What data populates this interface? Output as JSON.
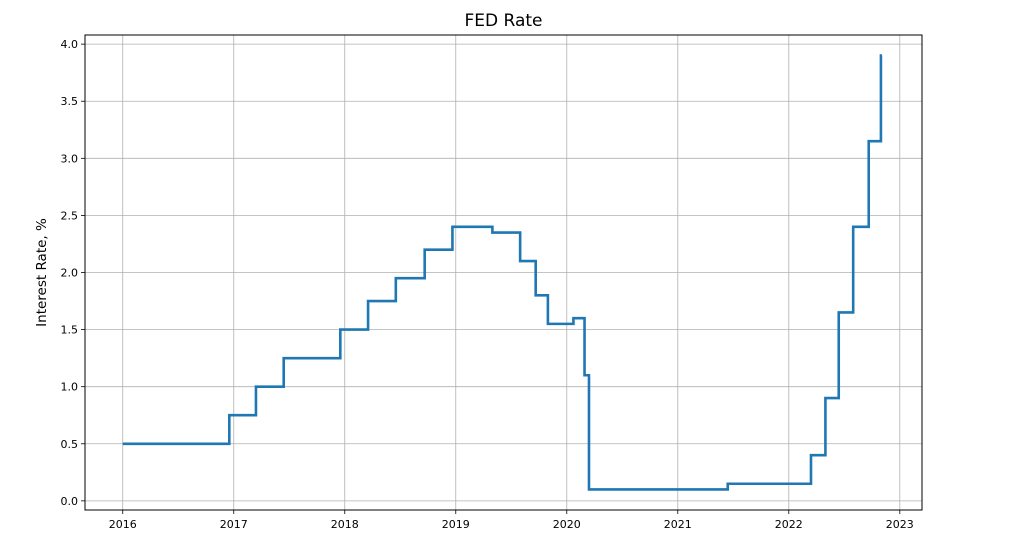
{
  "chart_data": {
    "type": "line",
    "title": "FED Rate",
    "xlabel": "",
    "ylabel": "Interest Rate, %",
    "xlim": [
      2015.66,
      2023.2
    ],
    "ylim": [
      -0.08,
      4.08
    ],
    "x_ticks": [
      2016,
      2017,
      2018,
      2019,
      2020,
      2021,
      2022,
      2023
    ],
    "x_tick_labels": [
      "2016",
      "2017",
      "2018",
      "2019",
      "2020",
      "2021",
      "2022",
      "2023"
    ],
    "y_ticks": [
      0.0,
      0.5,
      1.0,
      1.5,
      2.0,
      2.5,
      3.0,
      3.5,
      4.0
    ],
    "y_tick_labels": [
      "0.0",
      "0.5",
      "1.0",
      "1.5",
      "2.0",
      "2.5",
      "3.0",
      "3.5",
      "4.0"
    ],
    "grid": true,
    "step": true,
    "series": [
      {
        "color": "#1f77b4",
        "x": [
          2016.0,
          2016.96,
          2017.2,
          2017.45,
          2017.96,
          2018.21,
          2018.46,
          2018.72,
          2018.97,
          2019.33,
          2019.58,
          2019.72,
          2019.83,
          2020.06,
          2020.16,
          2020.2,
          2021.45,
          2022.2,
          2022.33,
          2022.45,
          2022.58,
          2022.72,
          2022.83,
          2022.84
        ],
        "y": [
          0.5,
          0.75,
          1.0,
          1.25,
          1.5,
          1.75,
          1.95,
          2.2,
          2.4,
          2.35,
          2.1,
          1.8,
          1.55,
          1.6,
          1.1,
          0.1,
          0.15,
          0.4,
          0.9,
          1.65,
          2.4,
          3.15,
          3.9,
          3.9
        ]
      }
    ]
  }
}
